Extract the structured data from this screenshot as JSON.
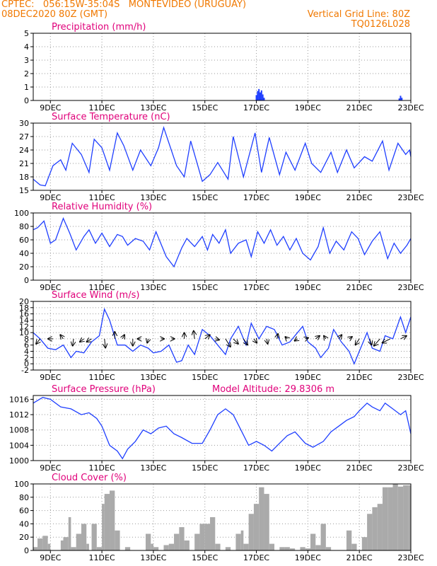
{
  "header": {
    "line1": "CPTEC:   056:15W-35:04S   MONTEVIDEO (URUGUAY)",
    "line2": "08DEC2020 80Z (GMT)",
    "grid_info": "Vertical Grid Line: 80Z",
    "code": "TQ0126L028"
  },
  "colors": {
    "header": "#f07800",
    "title": "#e0007a",
    "line": "#1f3fff",
    "cloud": "#aaaaaa",
    "grid": "#9a9a9a"
  },
  "x_tick_labels": [
    "9DEC",
    "11DEC",
    "13DEC",
    "15DEC",
    "17DEC",
    "19DEC",
    "21DEC",
    "23DEC"
  ],
  "chart_data": [
    {
      "id": "precip",
      "type": "bar",
      "title": "Precipitation (mm/h)",
      "ylim": [
        0,
        5
      ],
      "yticks": [
        0,
        1,
        2,
        3,
        4,
        5
      ],
      "x_range_days": [
        8.333,
        23.0
      ],
      "grid": true,
      "series": [
        {
          "x": [
            17.0,
            17.05,
            17.1,
            17.15,
            17.2,
            17.25,
            17.3,
            22.55,
            22.6,
            22.65
          ],
          "values": [
            0.4,
            0.7,
            0.85,
            0.6,
            0.75,
            0.45,
            0.2,
            0.15,
            0.35,
            0.2
          ]
        }
      ]
    },
    {
      "id": "temp",
      "type": "line",
      "title": "Surface Temperature (nC)",
      "ylim": [
        15,
        30
      ],
      "yticks": [
        15,
        18,
        21,
        24,
        27,
        30
      ],
      "x_range_days": [
        8.333,
        23.0
      ],
      "grid": true,
      "series": [
        {
          "x": [
            8.33,
            8.6,
            8.8,
            9.1,
            9.4,
            9.6,
            9.85,
            10.2,
            10.5,
            10.7,
            11.0,
            11.3,
            11.6,
            11.85,
            12.2,
            12.5,
            12.9,
            13.2,
            13.4,
            13.9,
            14.2,
            14.45,
            14.9,
            15.2,
            15.5,
            15.9,
            16.1,
            16.5,
            16.95,
            17.2,
            17.5,
            17.9,
            18.15,
            18.5,
            18.9,
            19.15,
            19.5,
            19.9,
            20.15,
            20.5,
            20.8,
            21.2,
            21.5,
            21.9,
            22.15,
            22.5,
            22.8,
            22.95,
            23.0
          ],
          "values": [
            17.5,
            16.2,
            16.0,
            20.5,
            21.8,
            19.5,
            25.5,
            23.0,
            19.0,
            26.4,
            24.5,
            19.5,
            27.8,
            25.0,
            19.5,
            24.0,
            20.5,
            24.5,
            29.0,
            20.5,
            18.0,
            26.0,
            17.0,
            18.5,
            21.2,
            17.5,
            27.0,
            18.0,
            27.8,
            19.0,
            26.8,
            18.5,
            23.5,
            19.5,
            25.5,
            21.0,
            19.0,
            23.5,
            19.0,
            24.0,
            20.0,
            22.5,
            21.5,
            26.0,
            19.5,
            25.5,
            23.0,
            24.0,
            22.5
          ]
        }
      ]
    },
    {
      "id": "rh",
      "type": "line",
      "title": "Relative Humidity (%)",
      "ylim": [
        0,
        100
      ],
      "yticks": [
        0,
        20,
        40,
        60,
        80,
        100
      ],
      "x_range_days": [
        8.333,
        23.0
      ],
      "grid": true,
      "series": [
        {
          "x": [
            8.33,
            8.5,
            8.75,
            9.0,
            9.2,
            9.5,
            9.75,
            10.0,
            10.3,
            10.5,
            10.75,
            11.0,
            11.3,
            11.6,
            11.8,
            12.0,
            12.3,
            12.6,
            12.85,
            13.1,
            13.5,
            13.8,
            14.1,
            14.3,
            14.6,
            14.9,
            15.1,
            15.3,
            15.55,
            15.8,
            16.0,
            16.3,
            16.6,
            16.8,
            17.05,
            17.3,
            17.55,
            17.8,
            18.05,
            18.3,
            18.55,
            18.8,
            19.1,
            19.4,
            19.6,
            19.85,
            20.1,
            20.4,
            20.7,
            20.95,
            21.2,
            21.5,
            21.8,
            22.1,
            22.35,
            22.6,
            22.85,
            23.0
          ],
          "values": [
            75,
            78,
            88,
            55,
            60,
            92,
            70,
            45,
            65,
            75,
            55,
            70,
            50,
            68,
            65,
            52,
            62,
            58,
            45,
            72,
            35,
            20,
            48,
            62,
            50,
            65,
            45,
            68,
            55,
            75,
            40,
            55,
            60,
            35,
            72,
            55,
            75,
            52,
            65,
            45,
            62,
            40,
            30,
            50,
            78,
            40,
            58,
            45,
            72,
            62,
            38,
            58,
            72,
            32,
            55,
            40,
            52,
            62
          ]
        }
      ]
    },
    {
      "id": "wind",
      "type": "line",
      "title": "Surface Wind (m/s)",
      "ylim": [
        -2,
        20
      ],
      "yticks": [
        -2,
        0,
        2,
        4,
        6,
        8,
        10,
        12,
        14,
        16,
        18,
        20
      ],
      "x_range_days": [
        8.333,
        23.0
      ],
      "grid": true,
      "series": [
        {
          "x": [
            8.33,
            8.6,
            8.9,
            9.2,
            9.5,
            9.8,
            10.0,
            10.3,
            10.6,
            10.9,
            11.1,
            11.3,
            11.6,
            11.9,
            12.2,
            12.5,
            12.8,
            13.0,
            13.3,
            13.6,
            13.9,
            14.1,
            14.35,
            14.6,
            14.9,
            15.2,
            15.5,
            15.8,
            16.0,
            16.3,
            16.6,
            16.8,
            17.1,
            17.4,
            17.7,
            18.0,
            18.3,
            18.6,
            18.8,
            19.0,
            19.3,
            19.5,
            19.8,
            20.0,
            20.3,
            20.6,
            20.8,
            21.1,
            21.3,
            21.5,
            21.8,
            22.0,
            22.3,
            22.6,
            22.8,
            23.0
          ],
          "values": [
            10,
            8,
            5,
            4.5,
            6,
            2,
            4,
            3.5,
            7,
            9,
            17.5,
            14,
            6,
            6,
            4,
            6,
            5,
            3.5,
            4,
            6,
            0.5,
            1,
            6,
            3,
            11,
            9,
            6,
            3,
            8,
            12,
            6,
            13,
            8,
            12,
            11,
            6,
            7,
            10,
            12,
            7,
            5,
            2,
            5,
            11,
            7,
            4,
            0,
            6,
            10,
            5,
            4,
            9,
            8,
            15,
            10,
            15
          ]
        }
      ],
      "wind_vectors": [
        [
          8.6,
          -0.4,
          -0.5
        ],
        [
          9.1,
          -0.5,
          0.0
        ],
        [
          9.5,
          -0.3,
          0.4
        ],
        [
          9.9,
          -0.1,
          -0.7
        ],
        [
          10.3,
          -0.4,
          -0.3
        ],
        [
          10.6,
          -0.5,
          -0.3
        ],
        [
          11.1,
          0.1,
          -0.9
        ],
        [
          11.5,
          0.0,
          0.7
        ],
        [
          11.8,
          0.2,
          0.4
        ],
        [
          12.2,
          0.0,
          -0.7
        ],
        [
          12.5,
          -0.3,
          0.0
        ],
        [
          12.8,
          -0.1,
          -0.4
        ],
        [
          13.3,
          0.3,
          0.0
        ],
        [
          13.7,
          0.3,
          0.0
        ],
        [
          14.2,
          0.0,
          0.6
        ],
        [
          14.6,
          -0.1,
          0.8
        ],
        [
          15.0,
          0.5,
          0.4
        ],
        [
          15.4,
          0.4,
          -0.1
        ],
        [
          15.8,
          0.5,
          -0.8
        ],
        [
          16.1,
          0.5,
          -0.5
        ],
        [
          16.5,
          0.4,
          -0.6
        ],
        [
          16.9,
          0.3,
          -0.4
        ],
        [
          17.4,
          0.1,
          -0.5
        ],
        [
          17.8,
          0.1,
          0.5
        ],
        [
          18.2,
          -0.2,
          0.2
        ],
        [
          18.6,
          -0.3,
          -0.2
        ],
        [
          18.9,
          0.3,
          0.1
        ],
        [
          19.3,
          0.4,
          0.3
        ],
        [
          19.7,
          -0.2,
          0.3
        ],
        [
          20.2,
          0.3,
          0.4
        ],
        [
          20.6,
          0.3,
          0.2
        ],
        [
          21.0,
          -0.4,
          -0.6
        ],
        [
          21.4,
          0.2,
          -0.6
        ],
        [
          21.8,
          -0.6,
          -0.7
        ],
        [
          22.2,
          -0.8,
          -0.4
        ],
        [
          22.6,
          0.6,
          0.3
        ]
      ]
    },
    {
      "id": "pres",
      "type": "line",
      "title": "Surface Pressure (hPa)",
      "annotation": "Model Altitude: 29.8306 m",
      "ylim": [
        1000,
        1017
      ],
      "yticks": [
        1000,
        1004,
        1008,
        1012,
        1016
      ],
      "x_range_days": [
        8.333,
        23.0
      ],
      "grid": true,
      "series": [
        {
          "x": [
            8.33,
            8.7,
            9.0,
            9.4,
            9.8,
            10.2,
            10.5,
            10.8,
            11.0,
            11.3,
            11.6,
            11.8,
            12.0,
            12.3,
            12.6,
            12.9,
            13.2,
            13.5,
            13.8,
            14.1,
            14.5,
            14.9,
            15.2,
            15.5,
            15.8,
            16.1,
            16.4,
            16.7,
            17.0,
            17.3,
            17.6,
            17.9,
            18.2,
            18.5,
            18.9,
            19.2,
            19.6,
            19.9,
            20.2,
            20.5,
            20.8,
            21.0,
            21.3,
            21.5,
            21.8,
            22.0,
            22.3,
            22.6,
            22.8,
            23.0
          ],
          "values": [
            1015,
            1016.5,
            1016,
            1014,
            1013.5,
            1012,
            1012.5,
            1011,
            1009,
            1004,
            1002.5,
            1000.5,
            1003,
            1005,
            1008,
            1007,
            1008.5,
            1009,
            1007,
            1006,
            1004.5,
            1004.5,
            1008,
            1012,
            1013.5,
            1012,
            1008,
            1004,
            1005,
            1004,
            1002.5,
            1004.5,
            1006.5,
            1007.5,
            1004.5,
            1003.5,
            1005,
            1007.5,
            1009,
            1010.5,
            1011.5,
            1013,
            1015,
            1014,
            1013,
            1015,
            1013.5,
            1012,
            1013,
            1007
          ]
        }
      ]
    },
    {
      "id": "cloud",
      "type": "area",
      "title": "Cloud Cover (%)",
      "ylim": [
        0,
        100
      ],
      "yticks": [
        0,
        20,
        40,
        60,
        80,
        100
      ],
      "x_range_days": [
        8.333,
        23.0
      ],
      "grid": true,
      "series": [
        {
          "x": [
            8.33,
            8.5,
            8.7,
            8.9,
            9.0,
            9.2,
            9.4,
            9.5,
            9.7,
            9.8,
            10.0,
            10.2,
            10.4,
            10.5,
            10.6,
            10.8,
            11.0,
            11.1,
            11.3,
            11.5,
            11.7,
            11.9,
            12.1,
            12.3,
            12.5,
            12.7,
            12.9,
            13.0,
            13.2,
            13.4,
            13.6,
            13.8,
            14.0,
            14.2,
            14.4,
            14.6,
            14.8,
            15.0,
            15.2,
            15.4,
            15.6,
            15.8,
            16.0,
            16.2,
            16.4,
            16.5,
            16.7,
            16.9,
            17.1,
            17.3,
            17.5,
            17.7,
            17.9,
            18.1,
            18.3,
            18.5,
            18.7,
            18.9,
            19.1,
            19.3,
            19.5,
            19.7,
            19.9,
            20.1,
            20.3,
            20.5,
            20.7,
            20.9,
            21.1,
            21.3,
            21.5,
            21.7,
            21.9,
            22.1,
            22.3,
            22.5,
            22.7,
            22.9,
            23.0
          ],
          "values": [
            5,
            18,
            22,
            10,
            0,
            0,
            15,
            20,
            50,
            5,
            25,
            40,
            10,
            0,
            40,
            5,
            70,
            85,
            90,
            30,
            0,
            5,
            0,
            0,
            0,
            25,
            10,
            5,
            0,
            8,
            10,
            25,
            35,
            15,
            0,
            25,
            40,
            40,
            50,
            10,
            0,
            5,
            0,
            25,
            30,
            10,
            55,
            70,
            95,
            85,
            10,
            0,
            5,
            5,
            3,
            0,
            5,
            3,
            25,
            8,
            40,
            5,
            0,
            0,
            0,
            30,
            10,
            0,
            20,
            55,
            65,
            70,
            95,
            95,
            100,
            96,
            98,
            98,
            96
          ]
        }
      ]
    }
  ]
}
